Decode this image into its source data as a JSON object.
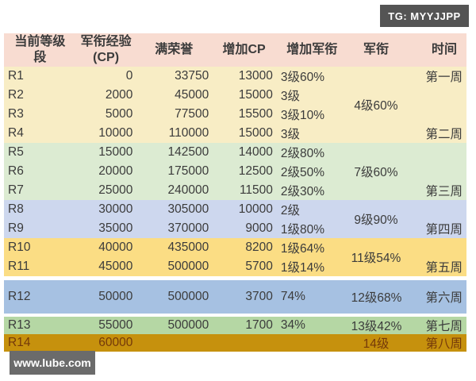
{
  "badges": {
    "tg": "TG: MYYJJPP",
    "site": "www.lube.com"
  },
  "colors": {
    "header_bg": "#f8dcd1",
    "band_r1_r4": "#f8edc5",
    "band_r5_r7": "#dcebd2",
    "band_r8_r9": "#cdd7ee",
    "band_r10_r11": "#fbdd84",
    "band_r12": "#a6c1e2",
    "band_r13": "#b5d7a4",
    "band_r14": "#c6910d",
    "tg_badge_bg": "#545454",
    "site_badge_bg": "#6b6b6b",
    "text": "#3b3b3b",
    "r14_text": "#74390a"
  },
  "table": {
    "headers": {
      "col1_line1": "当前等级",
      "col1_line2": "段",
      "col2_line1": "军衔经验",
      "col2_line2": "(CP)",
      "col3": "满荣誉",
      "col4": "增加CP",
      "col5": "增加军衔",
      "col6": "军衔",
      "col7": "时间"
    },
    "rows": [
      {
        "rank": "R1",
        "exp": "0",
        "honor": "33750",
        "add_cp": "13000",
        "add_rank": "3级60%",
        "mil_rank": "",
        "time": "第一周"
      },
      {
        "rank": "R2",
        "exp": "2000",
        "honor": "45000",
        "add_cp": "15000",
        "add_rank": "3级",
        "mil_rank": "4级60%",
        "time": ""
      },
      {
        "rank": "R3",
        "exp": "5000",
        "honor": "77500",
        "add_cp": "15500",
        "add_rank": "3级10%",
        "mil_rank": "",
        "time": ""
      },
      {
        "rank": "R4",
        "exp": "10000",
        "honor": "110000",
        "add_cp": "15000",
        "add_rank": "3级",
        "mil_rank": "",
        "time": "第二周"
      },
      {
        "rank": "R5",
        "exp": "15000",
        "honor": "142500",
        "add_cp": "14000",
        "add_rank": "2级80%",
        "mil_rank": "7级60%",
        "time": ""
      },
      {
        "rank": "R6",
        "exp": "20000",
        "honor": "175000",
        "add_cp": "12500",
        "add_rank": "2级50%",
        "mil_rank": "",
        "time": ""
      },
      {
        "rank": "R7",
        "exp": "25000",
        "honor": "240000",
        "add_cp": "11500",
        "add_rank": "2级30%",
        "mil_rank": "",
        "time": "第三周"
      },
      {
        "rank": "R8",
        "exp": "30000",
        "honor": "305000",
        "add_cp": "10000",
        "add_rank": "2级",
        "mil_rank": "9级90%",
        "time": ""
      },
      {
        "rank": "R9",
        "exp": "35000",
        "honor": "370000",
        "add_cp": "9000",
        "add_rank": "1级80%",
        "mil_rank": "",
        "time": "第四周"
      },
      {
        "rank": "R10",
        "exp": "40000",
        "honor": "435000",
        "add_cp": "8200",
        "add_rank": "1级64%",
        "mil_rank": "11级54%",
        "time": ""
      },
      {
        "rank": "R11",
        "exp": "45000",
        "honor": "500000",
        "add_cp": "5700",
        "add_rank": "1级14%",
        "mil_rank": "",
        "time": "第五周"
      },
      {
        "rank": "R12",
        "exp": "50000",
        "honor": "500000",
        "add_cp": "3700",
        "add_rank": "74%",
        "mil_rank": "12级68%",
        "time": "第六周"
      },
      {
        "rank": "R13",
        "exp": "55000",
        "honor": "500000",
        "add_cp": "1700",
        "add_rank": "34%",
        "mil_rank": "13级42%",
        "time": "第七周"
      },
      {
        "rank": "R14",
        "exp": "60000",
        "honor": "",
        "add_cp": "",
        "add_rank": "",
        "mil_rank": "14级",
        "time": "第八周"
      }
    ]
  }
}
